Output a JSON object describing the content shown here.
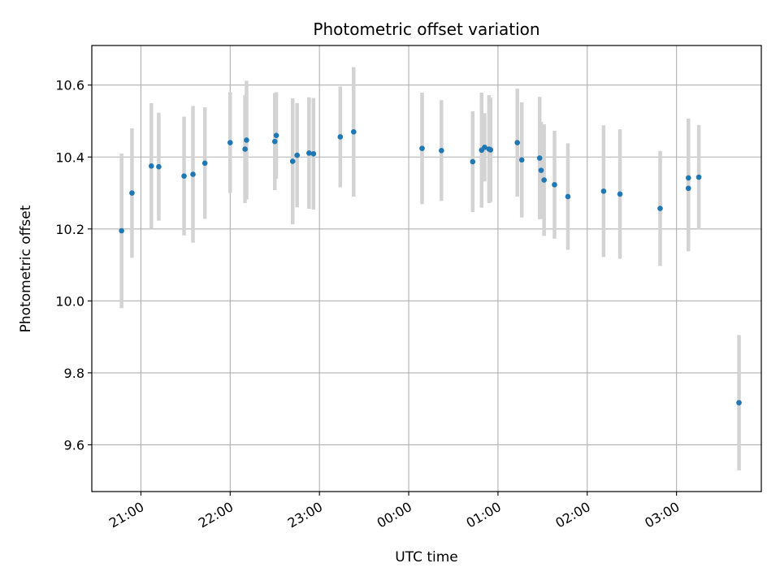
{
  "chart_data": {
    "type": "scatter",
    "title": "Photometric offset variation",
    "xlabel": "UTC time",
    "ylabel": "Photometric offset",
    "x_axis_kind": "time",
    "x_range": [
      "20:27",
      "03:57"
    ],
    "ylim": [
      9.47,
      10.71
    ],
    "grid": true,
    "x_ticks": [
      {
        "time": "21:00",
        "label": "21:00"
      },
      {
        "time": "22:00",
        "label": "22:00"
      },
      {
        "time": "23:00",
        "label": "23:00"
      },
      {
        "time": "00:00",
        "label": "00:00"
      },
      {
        "time": "01:00",
        "label": "01:00"
      },
      {
        "time": "02:00",
        "label": "02:00"
      },
      {
        "time": "03:00",
        "label": "03:00"
      }
    ],
    "y_ticks": [
      {
        "value": 9.6,
        "label": "9.6"
      },
      {
        "value": 9.8,
        "label": "9.8"
      },
      {
        "value": 10.0,
        "label": "10.0"
      },
      {
        "value": 10.2,
        "label": "10.2"
      },
      {
        "value": 10.4,
        "label": "10.4"
      },
      {
        "value": 10.6,
        "label": "10.6"
      }
    ],
    "colors": {
      "point": "#1f77b4",
      "errorbar": "#d3d3d3",
      "grid": "#b0b0b0"
    },
    "points": [
      {
        "time": "20:47",
        "y": 10.195,
        "err": 0.215
      },
      {
        "time": "20:54",
        "y": 10.3,
        "err": 0.18
      },
      {
        "time": "21:07",
        "y": 10.375,
        "err": 0.175
      },
      {
        "time": "21:12",
        "y": 10.373,
        "err": 0.15
      },
      {
        "time": "21:29",
        "y": 10.347,
        "err": 0.165
      },
      {
        "time": "21:35",
        "y": 10.352,
        "err": 0.19
      },
      {
        "time": "21:43",
        "y": 10.383,
        "err": 0.155
      },
      {
        "time": "22:00",
        "y": 10.44,
        "err": 0.14
      },
      {
        "time": "22:10",
        "y": 10.422,
        "err": 0.15
      },
      {
        "time": "22:11",
        "y": 10.447,
        "err": 0.165
      },
      {
        "time": "22:30",
        "y": 10.443,
        "err": 0.135
      },
      {
        "time": "22:31",
        "y": 10.46,
        "err": 0.12
      },
      {
        "time": "22:42",
        "y": 10.388,
        "err": 0.175
      },
      {
        "time": "22:45",
        "y": 10.405,
        "err": 0.145
      },
      {
        "time": "22:53",
        "y": 10.411,
        "err": 0.155
      },
      {
        "time": "22:56",
        "y": 10.409,
        "err": 0.155
      },
      {
        "time": "23:14",
        "y": 10.456,
        "err": 0.14
      },
      {
        "time": "23:23",
        "y": 10.47,
        "err": 0.18
      },
      {
        "time": "00:09",
        "y": 10.424,
        "err": 0.155
      },
      {
        "time": "00:22",
        "y": 10.418,
        "err": 0.14
      },
      {
        "time": "00:43",
        "y": 10.387,
        "err": 0.14
      },
      {
        "time": "00:49",
        "y": 10.419,
        "err": 0.16
      },
      {
        "time": "00:51",
        "y": 10.427,
        "err": 0.095
      },
      {
        "time": "00:54",
        "y": 10.422,
        "err": 0.15
      },
      {
        "time": "00:55",
        "y": 10.42,
        "err": 0.145
      },
      {
        "time": "01:13",
        "y": 10.44,
        "err": 0.15
      },
      {
        "time": "01:16",
        "y": 10.392,
        "err": 0.16
      },
      {
        "time": "01:28",
        "y": 10.397,
        "err": 0.17
      },
      {
        "time": "01:29",
        "y": 10.363,
        "err": 0.135
      },
      {
        "time": "01:31",
        "y": 10.336,
        "err": 0.155
      },
      {
        "time": "01:38",
        "y": 10.323,
        "err": 0.15
      },
      {
        "time": "01:47",
        "y": 10.29,
        "err": 0.148
      },
      {
        "time": "02:11",
        "y": 10.305,
        "err": 0.183
      },
      {
        "time": "02:22",
        "y": 10.297,
        "err": 0.18
      },
      {
        "time": "02:49",
        "y": 10.257,
        "err": 0.16
      },
      {
        "time": "03:08",
        "y": 10.313,
        "err": 0.175
      },
      {
        "time": "03:08",
        "y": 10.342,
        "err": 0.165
      },
      {
        "time": "03:15",
        "y": 10.344,
        "err": 0.145
      },
      {
        "time": "03:42",
        "y": 9.717,
        "err": 0.188
      }
    ]
  }
}
